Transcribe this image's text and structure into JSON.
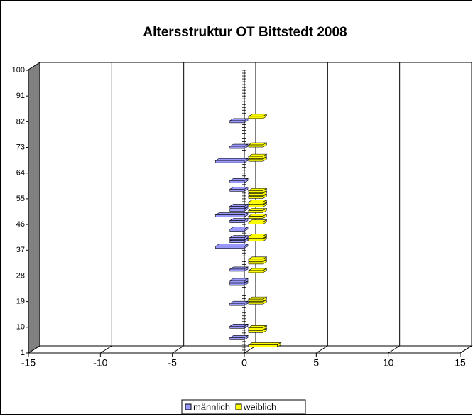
{
  "chart_data": {
    "type": "bar3d",
    "orientation": "horizontal",
    "title": "Altersstruktur OT Bittstedt 2008",
    "categories": [
      1,
      null,
      null,
      null,
      null,
      null,
      null,
      null,
      null,
      10,
      null,
      null,
      null,
      null,
      null,
      null,
      null,
      null,
      19,
      null,
      null,
      null,
      null,
      null,
      null,
      null,
      null,
      28,
      null,
      null,
      null,
      null,
      null,
      null,
      null,
      null,
      37,
      null,
      null,
      null,
      null,
      null,
      null,
      null,
      null,
      46,
      null,
      null,
      null,
      null,
      null,
      null,
      null,
      null,
      55,
      null,
      null,
      null,
      null,
      null,
      null,
      null,
      null,
      64,
      null,
      null,
      null,
      null,
      null,
      null,
      null,
      null,
      73,
      null,
      null,
      null,
      null,
      null,
      null,
      null,
      null,
      82,
      null,
      null,
      null,
      null,
      null,
      null,
      null,
      null,
      91,
      null,
      null,
      null,
      null,
      null,
      null,
      null,
      null,
      100
    ],
    "series": [
      {
        "name": "männlich",
        "color": "#9999ff",
        "values": [
          0,
          0,
          0,
          0,
          0,
          -1,
          0,
          0,
          0,
          -1,
          0,
          0,
          0,
          0,
          0,
          0,
          0,
          -1,
          0,
          0,
          0,
          0,
          0,
          0,
          -1,
          -1,
          0,
          0,
          0,
          -1,
          0,
          0,
          0,
          0,
          0,
          0,
          0,
          -2,
          0,
          -1,
          -1,
          0,
          0,
          -1,
          0,
          0,
          -1,
          0,
          -2,
          0,
          -1,
          -1,
          0,
          0,
          0,
          0,
          0,
          -1,
          0,
          0,
          -1,
          0,
          0,
          0,
          0,
          0,
          0,
          -2,
          0,
          0,
          0,
          0,
          -1,
          0,
          0,
          0,
          0,
          0,
          0,
          0,
          0,
          -1,
          0,
          0,
          0,
          0,
          0,
          0,
          0,
          0,
          0,
          0,
          0,
          0,
          0,
          0,
          0,
          0,
          0,
          0
        ]
      },
      {
        "name": "weiblich",
        "color": "#ffff00",
        "values": [
          0,
          0,
          2,
          0,
          0,
          0,
          0,
          1,
          1,
          0,
          0,
          0,
          0,
          0,
          0,
          0,
          0,
          1,
          1,
          0,
          0,
          0,
          0,
          0,
          0,
          0,
          0,
          0,
          1,
          0,
          0,
          1,
          1,
          0,
          0,
          0,
          0,
          0,
          0,
          1,
          1,
          0,
          0,
          0,
          0,
          1,
          0,
          1,
          0,
          1,
          0,
          1,
          1,
          0,
          1,
          1,
          1,
          0,
          0,
          0,
          0,
          0,
          0,
          0,
          0,
          0,
          0,
          1,
          1,
          0,
          0,
          0,
          1,
          0,
          0,
          0,
          0,
          0,
          0,
          0,
          0,
          0,
          1,
          0,
          0,
          0,
          0,
          0,
          0,
          0,
          0,
          0,
          0,
          0,
          0,
          0,
          0,
          0,
          0,
          0
        ]
      }
    ],
    "xlim": [
      -15,
      15
    ],
    "xticks": [
      -15,
      -10,
      -5,
      0,
      5,
      10,
      15
    ],
    "grid": true,
    "legend": "bottom"
  }
}
